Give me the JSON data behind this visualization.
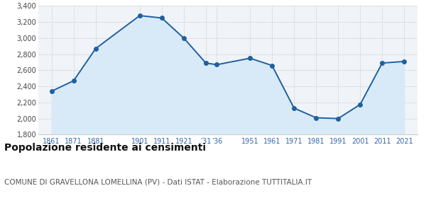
{
  "years": [
    1861,
    1871,
    1881,
    1901,
    1911,
    1921,
    1931,
    1936,
    1951,
    1961,
    1971,
    1981,
    1991,
    2001,
    2011,
    2021
  ],
  "population": [
    2340,
    2470,
    2870,
    3280,
    3250,
    3000,
    2690,
    2670,
    2750,
    2660,
    2130,
    2010,
    2000,
    2175,
    2690,
    2710
  ],
  "x_tick_years": [
    1861,
    1871,
    1881,
    1901,
    1911,
    1921,
    1931,
    1936,
    1951,
    1961,
    1971,
    1981,
    1991,
    2001,
    2011,
    2021
  ],
  "x_tick_labels": [
    "1861",
    "1871",
    "1881",
    "1901",
    "1911",
    "1921",
    "’31",
    "’36",
    "1951",
    "1961",
    "1971",
    "1981",
    "1991",
    "2001",
    "2011",
    "2021"
  ],
  "ylim": [
    1800,
    3400
  ],
  "yticks": [
    1800,
    2000,
    2200,
    2400,
    2600,
    2800,
    3000,
    3200,
    3400
  ],
  "ytick_labels": [
    "1,800",
    "2,000",
    "2,200",
    "2,400",
    "2,600",
    "2,800",
    "3,000",
    "3,200",
    "3,400"
  ],
  "line_color": "#2060a0",
  "fill_color": "#d8eaf8",
  "marker_color": "#2060a0",
  "grid_color": "#cccccc",
  "bg_color": "#f0f4f8",
  "title": "Popolazione residente ai censimenti",
  "subtitle": "COMUNE DI GRAVELLONA LOMELLINA (PV) - Dati ISTAT - Elaborazione TUTTITALIA.IT",
  "title_fontsize": 10,
  "subtitle_fontsize": 7.5
}
